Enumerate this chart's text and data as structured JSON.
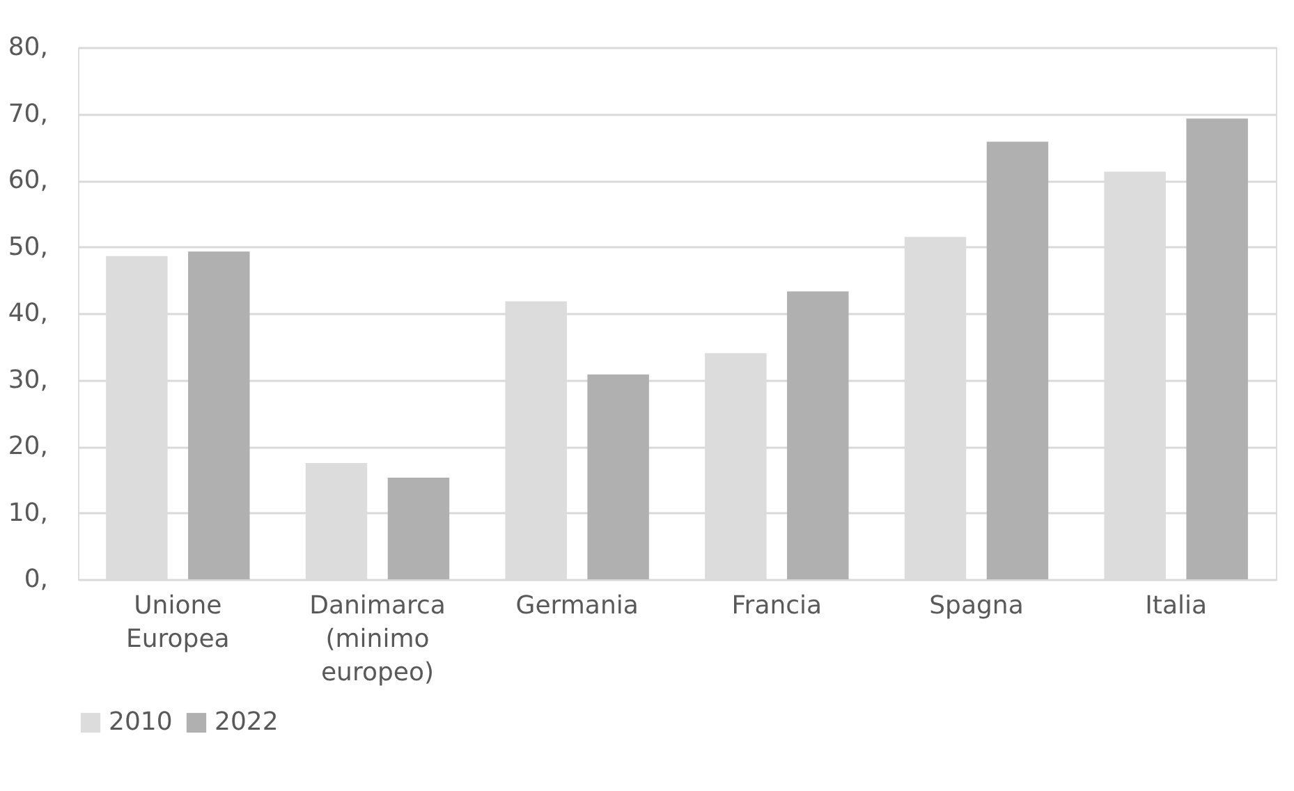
{
  "chart_data": {
    "type": "bar",
    "categories": [
      "Unione Europea",
      "Danimarca (minimo europeo)",
      "Germania",
      "Francia",
      "Spagna",
      "Italia"
    ],
    "series": [
      {
        "name": "2010",
        "color": "#dcdcdc",
        "values": [
          48.6,
          17.5,
          41.8,
          34.0,
          51.5,
          61.3
        ]
      },
      {
        "name": "2022",
        "color": "#b0b0b0",
        "values": [
          49.3,
          15.3,
          30.8,
          43.3,
          65.8,
          69.3
        ]
      }
    ],
    "ylim": [
      0,
      80
    ],
    "yticks": [
      {
        "value": 0,
        "label": "0,"
      },
      {
        "value": 10,
        "label": "10,"
      },
      {
        "value": 20,
        "label": "20,"
      },
      {
        "value": 30,
        "label": "30,"
      },
      {
        "value": 40,
        "label": "40,"
      },
      {
        "value": 50,
        "label": "50,"
      },
      {
        "value": 60,
        "label": "60,"
      },
      {
        "value": 70,
        "label": "70,"
      },
      {
        "value": 80,
        "label": "80,"
      }
    ],
    "grid": "y",
    "legend": "bottom"
  }
}
